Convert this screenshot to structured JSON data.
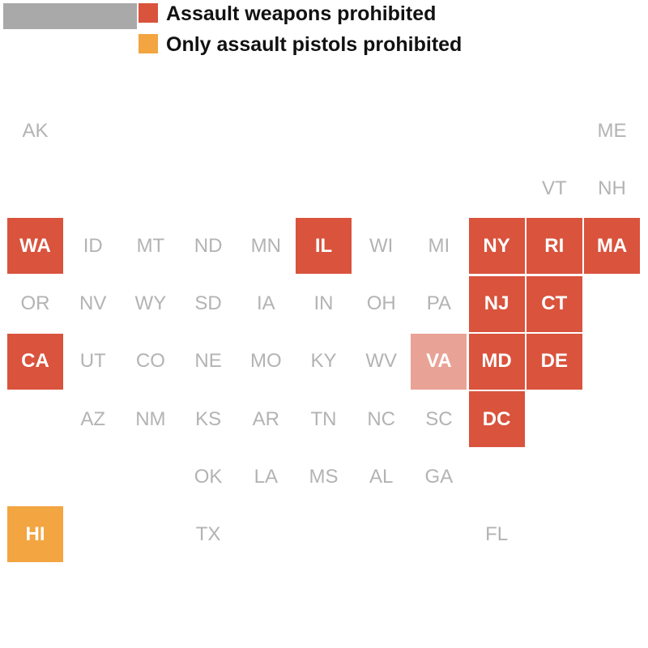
{
  "legend": {
    "items": [
      {
        "label": "Assault weapons prohibited",
        "color": "#d9533d"
      },
      {
        "label": "Only assault pistols prohibited",
        "color": "#f2a540"
      }
    ]
  },
  "colors": {
    "none_text": "#b3b3b3",
    "assault_weapons": "#d9533d",
    "assault_pistols": "#f2a540",
    "partial": "#e8a396"
  },
  "states": [
    {
      "abbr": "AK",
      "row": 0,
      "col": 0,
      "status": "none"
    },
    {
      "abbr": "ME",
      "row": 0,
      "col": 10,
      "status": "none"
    },
    {
      "abbr": "VT",
      "row": 1,
      "col": 9,
      "status": "none"
    },
    {
      "abbr": "NH",
      "row": 1,
      "col": 10,
      "status": "none"
    },
    {
      "abbr": "WA",
      "row": 2,
      "col": 0,
      "status": "assault_weapons"
    },
    {
      "abbr": "ID",
      "row": 2,
      "col": 1,
      "status": "none"
    },
    {
      "abbr": "MT",
      "row": 2,
      "col": 2,
      "status": "none"
    },
    {
      "abbr": "ND",
      "row": 2,
      "col": 3,
      "status": "none"
    },
    {
      "abbr": "MN",
      "row": 2,
      "col": 4,
      "status": "none"
    },
    {
      "abbr": "IL",
      "row": 2,
      "col": 5,
      "status": "assault_weapons"
    },
    {
      "abbr": "WI",
      "row": 2,
      "col": 6,
      "status": "none"
    },
    {
      "abbr": "MI",
      "row": 2,
      "col": 7,
      "status": "none"
    },
    {
      "abbr": "NY",
      "row": 2,
      "col": 8,
      "status": "assault_weapons"
    },
    {
      "abbr": "RI",
      "row": 2,
      "col": 9,
      "status": "assault_weapons"
    },
    {
      "abbr": "MA",
      "row": 2,
      "col": 10,
      "status": "assault_weapons"
    },
    {
      "abbr": "OR",
      "row": 3,
      "col": 0,
      "status": "none"
    },
    {
      "abbr": "NV",
      "row": 3,
      "col": 1,
      "status": "none"
    },
    {
      "abbr": "WY",
      "row": 3,
      "col": 2,
      "status": "none"
    },
    {
      "abbr": "SD",
      "row": 3,
      "col": 3,
      "status": "none"
    },
    {
      "abbr": "IA",
      "row": 3,
      "col": 4,
      "status": "none"
    },
    {
      "abbr": "IN",
      "row": 3,
      "col": 5,
      "status": "none"
    },
    {
      "abbr": "OH",
      "row": 3,
      "col": 6,
      "status": "none"
    },
    {
      "abbr": "PA",
      "row": 3,
      "col": 7,
      "status": "none"
    },
    {
      "abbr": "NJ",
      "row": 3,
      "col": 8,
      "status": "assault_weapons"
    },
    {
      "abbr": "CT",
      "row": 3,
      "col": 9,
      "status": "assault_weapons"
    },
    {
      "abbr": "CA",
      "row": 4,
      "col": 0,
      "status": "assault_weapons"
    },
    {
      "abbr": "UT",
      "row": 4,
      "col": 1,
      "status": "none"
    },
    {
      "abbr": "CO",
      "row": 4,
      "col": 2,
      "status": "none"
    },
    {
      "abbr": "NE",
      "row": 4,
      "col": 3,
      "status": "none"
    },
    {
      "abbr": "MO",
      "row": 4,
      "col": 4,
      "status": "none"
    },
    {
      "abbr": "KY",
      "row": 4,
      "col": 5,
      "status": "none"
    },
    {
      "abbr": "WV",
      "row": 4,
      "col": 6,
      "status": "none"
    },
    {
      "abbr": "VA",
      "row": 4,
      "col": 7,
      "status": "partial"
    },
    {
      "abbr": "MD",
      "row": 4,
      "col": 8,
      "status": "assault_weapons"
    },
    {
      "abbr": "DE",
      "row": 4,
      "col": 9,
      "status": "assault_weapons"
    },
    {
      "abbr": "AZ",
      "row": 5,
      "col": 1,
      "status": "none"
    },
    {
      "abbr": "NM",
      "row": 5,
      "col": 2,
      "status": "none"
    },
    {
      "abbr": "KS",
      "row": 5,
      "col": 3,
      "status": "none"
    },
    {
      "abbr": "AR",
      "row": 5,
      "col": 4,
      "status": "none"
    },
    {
      "abbr": "TN",
      "row": 5,
      "col": 5,
      "status": "none"
    },
    {
      "abbr": "NC",
      "row": 5,
      "col": 6,
      "status": "none"
    },
    {
      "abbr": "SC",
      "row": 5,
      "col": 7,
      "status": "none"
    },
    {
      "abbr": "DC",
      "row": 5,
      "col": 8,
      "status": "assault_weapons"
    },
    {
      "abbr": "OK",
      "row": 6,
      "col": 3,
      "status": "none"
    },
    {
      "abbr": "LA",
      "row": 6,
      "col": 4,
      "status": "none"
    },
    {
      "abbr": "MS",
      "row": 6,
      "col": 5,
      "status": "none"
    },
    {
      "abbr": "AL",
      "row": 6,
      "col": 6,
      "status": "none"
    },
    {
      "abbr": "GA",
      "row": 6,
      "col": 7,
      "status": "none"
    },
    {
      "abbr": "HI",
      "row": 7,
      "col": 0,
      "status": "assault_pistols"
    },
    {
      "abbr": "TX",
      "row": 7,
      "col": 3,
      "status": "none"
    },
    {
      "abbr": "FL",
      "row": 7,
      "col": 8,
      "status": "none"
    }
  ]
}
